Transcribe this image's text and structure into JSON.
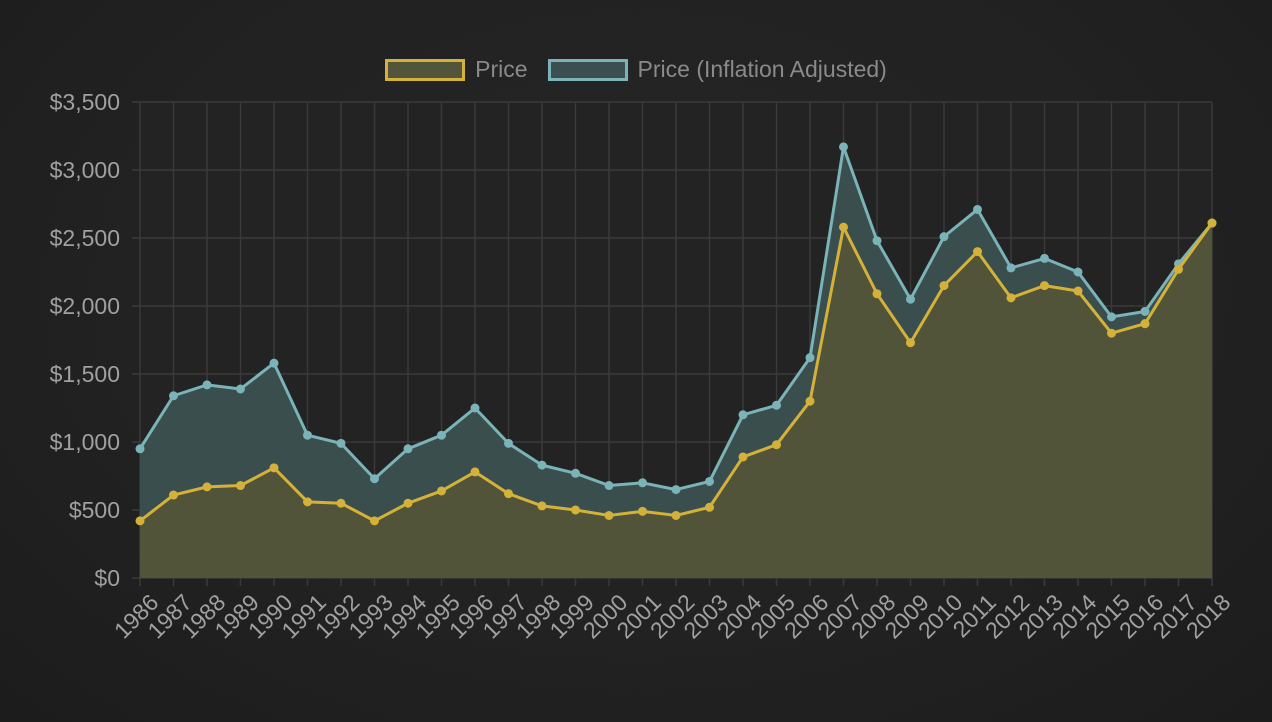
{
  "chart_data": {
    "type": "line",
    "title": "",
    "xlabel": "",
    "ylabel": "",
    "x": [
      "1986",
      "1987",
      "1988",
      "1989",
      "1990",
      "1991",
      "1992",
      "1993",
      "1994",
      "1995",
      "1996",
      "1997",
      "1998",
      "1999",
      "2000",
      "2001",
      "2002",
      "2003",
      "2004",
      "2005",
      "2006",
      "2007",
      "2008",
      "2009",
      "2010",
      "2011",
      "2012",
      "2013",
      "2014",
      "2015",
      "2016",
      "2017",
      "2018"
    ],
    "ylim": [
      0,
      3500
    ],
    "yticks": [
      {
        "value": 0,
        "label": "$0"
      },
      {
        "value": 500,
        "label": "$500"
      },
      {
        "value": 1000,
        "label": "$1,000"
      },
      {
        "value": 1500,
        "label": "$1,500"
      },
      {
        "value": 2000,
        "label": "$2,000"
      },
      {
        "value": 2500,
        "label": "$2,500"
      },
      {
        "value": 3000,
        "label": "$3,000"
      },
      {
        "value": 3500,
        "label": "$3,500"
      }
    ],
    "grid": true,
    "legend_position": "top-center",
    "series": [
      {
        "name": "Price (Inflation Adjusted)",
        "color": "#7ab3b8",
        "fill": "#3b4f50",
        "values": [
          950,
          1340,
          1420,
          1390,
          1580,
          1050,
          990,
          730,
          950,
          1050,
          1250,
          990,
          830,
          770,
          680,
          700,
          650,
          710,
          1200,
          1270,
          1620,
          3170,
          2480,
          2050,
          2510,
          2710,
          2280,
          2350,
          2250,
          1920,
          1960,
          2310,
          2610
        ]
      },
      {
        "name": "Price",
        "color": "#d4b23a",
        "fill": "#525539",
        "values": [
          420,
          610,
          670,
          680,
          810,
          560,
          550,
          420,
          550,
          640,
          780,
          620,
          530,
          500,
          460,
          490,
          460,
          520,
          890,
          980,
          1300,
          2580,
          2090,
          1730,
          2150,
          2400,
          2060,
          2150,
          2110,
          1800,
          1870,
          2270,
          2610
        ]
      }
    ]
  },
  "legend": {
    "items": [
      {
        "label": "Price",
        "color": "#d4b23a",
        "fill": "#525539"
      },
      {
        "label": "Price (Inflation Adjusted)",
        "color": "#7ab3b8",
        "fill": "#3b4f50"
      }
    ]
  }
}
